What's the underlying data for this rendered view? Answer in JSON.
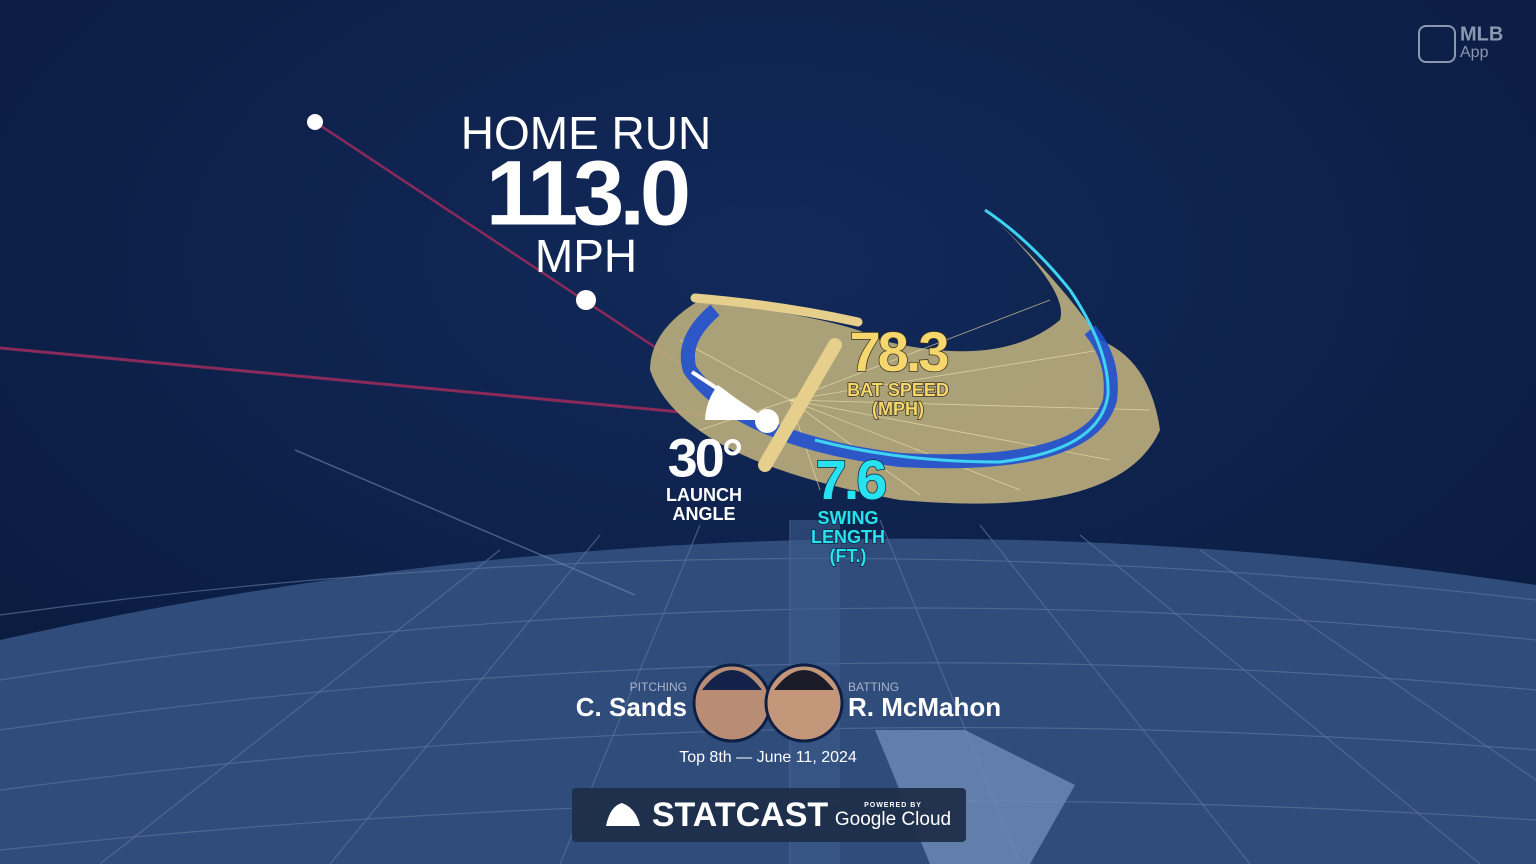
{
  "logo": {
    "brand": "MLB",
    "product": "App"
  },
  "result": {
    "title": "HOME RUN",
    "exit_velocity": "113.0",
    "unit": "MPH"
  },
  "bat_speed": {
    "value": "78.3",
    "label": "BAT SPEED",
    "unit": "(MPH)"
  },
  "swing_length": {
    "value": "7.6",
    "label_1": "SWING",
    "label_2": "LENGTH",
    "unit": "(FT.)"
  },
  "launch_angle": {
    "value": "30°",
    "label_1": "LAUNCH",
    "label_2": "ANGLE"
  },
  "matchup": {
    "pitcher_role": "PITCHING",
    "pitcher": "C. Sands",
    "batter_role": "BATTING",
    "batter": "R. McMahon",
    "context": "Top 8th — June 11, 2024"
  },
  "footer": {
    "brand": "STATCAST",
    "powered_by": "POWERED BY",
    "partner": "Google Cloud"
  }
}
